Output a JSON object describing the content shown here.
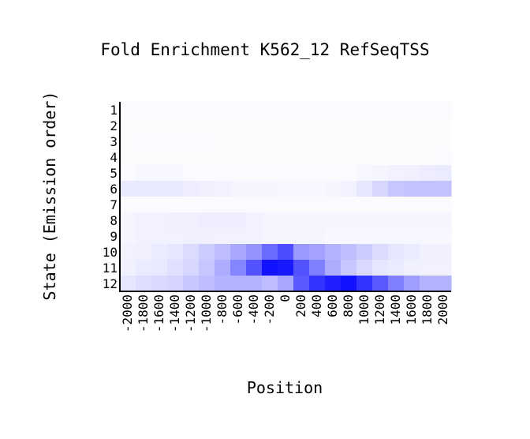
{
  "chart_data": {
    "type": "heatmap",
    "title": "Fold Enrichment K562_12 RefSeqTSS",
    "xlabel": "Position",
    "ylabel": "State (Emission order)",
    "x": [
      "-2000",
      "-1800",
      "-1600",
      "-1400",
      "-1200",
      "-1000",
      "-800",
      "-600",
      "-400",
      "-200",
      "0",
      "200",
      "400",
      "600",
      "800",
      "1000",
      "1200",
      "1400",
      "1600",
      "1800",
      "2000"
    ],
    "y": [
      "1",
      "2",
      "3",
      "4",
      "5",
      "6",
      "7",
      "8",
      "9",
      "10",
      "11",
      "12"
    ],
    "values": [
      [
        0.02,
        0.02,
        0.02,
        0.02,
        0.02,
        0.02,
        0.02,
        0.02,
        0.02,
        0.02,
        0.02,
        0.02,
        0.02,
        0.02,
        0.02,
        0.02,
        0.02,
        0.02,
        0.02,
        0.02,
        0.02
      ],
      [
        0.01,
        0.01,
        0.01,
        0.01,
        0.01,
        0.01,
        0.01,
        0.01,
        0.01,
        0.01,
        0.01,
        0.01,
        0.01,
        0.01,
        0.01,
        0.01,
        0.01,
        0.01,
        0.01,
        0.01,
        0.01
      ],
      [
        0.01,
        0.02,
        0.02,
        0.02,
        0.02,
        0.02,
        0.01,
        0.01,
        0.01,
        0.01,
        0.01,
        0.01,
        0.01,
        0.01,
        0.01,
        0.01,
        0.01,
        0.01,
        0.01,
        0.01,
        0.01
      ],
      [
        0.01,
        0.01,
        0.01,
        0.01,
        0.01,
        0.01,
        0.01,
        0.01,
        0.01,
        0.01,
        0.01,
        0.01,
        0.01,
        0.01,
        0.01,
        0.01,
        0.01,
        0.01,
        0.01,
        0.01,
        0.02
      ],
      [
        0.02,
        0.03,
        0.03,
        0.03,
        0.02,
        0.02,
        0.02,
        0.02,
        0.02,
        0.02,
        0.02,
        0.02,
        0.02,
        0.02,
        0.02,
        0.03,
        0.04,
        0.05,
        0.06,
        0.07,
        0.08
      ],
      [
        0.09,
        0.09,
        0.09,
        0.09,
        0.07,
        0.06,
        0.05,
        0.04,
        0.04,
        0.04,
        0.03,
        0.03,
        0.03,
        0.04,
        0.05,
        0.1,
        0.16,
        0.22,
        0.24,
        0.24,
        0.24
      ],
      [
        0.02,
        0.02,
        0.02,
        0.02,
        0.02,
        0.02,
        0.02,
        0.02,
        0.02,
        0.02,
        0.02,
        0.02,
        0.02,
        0.02,
        0.02,
        0.02,
        0.02,
        0.02,
        0.02,
        0.02,
        0.02
      ],
      [
        0.04,
        0.05,
        0.05,
        0.06,
        0.06,
        0.07,
        0.07,
        0.07,
        0.05,
        0.04,
        0.04,
        0.04,
        0.04,
        0.04,
        0.04,
        0.04,
        0.04,
        0.04,
        0.04,
        0.04,
        0.04
      ],
      [
        0.04,
        0.05,
        0.05,
        0.05,
        0.06,
        0.06,
        0.05,
        0.05,
        0.05,
        0.04,
        0.04,
        0.04,
        0.04,
        0.03,
        0.03,
        0.03,
        0.03,
        0.03,
        0.03,
        0.03,
        0.03
      ],
      [
        0.05,
        0.06,
        0.08,
        0.1,
        0.14,
        0.2,
        0.26,
        0.34,
        0.42,
        0.58,
        0.7,
        0.4,
        0.36,
        0.3,
        0.25,
        0.2,
        0.14,
        0.1,
        0.08,
        0.06,
        0.06
      ],
      [
        0.06,
        0.08,
        0.09,
        0.12,
        0.16,
        0.22,
        0.32,
        0.48,
        0.68,
        0.93,
        0.9,
        0.68,
        0.5,
        0.32,
        0.22,
        0.15,
        0.1,
        0.08,
        0.06,
        0.05,
        0.05
      ],
      [
        0.1,
        0.13,
        0.15,
        0.17,
        0.22,
        0.26,
        0.3,
        0.3,
        0.3,
        0.26,
        0.34,
        0.65,
        0.8,
        0.88,
        0.93,
        0.8,
        0.65,
        0.5,
        0.38,
        0.3,
        0.3
      ]
    ],
    "color_scale": {
      "low": "#ffffff",
      "high": "#0000ff",
      "vmin": 0,
      "vmax": 1
    },
    "grid": false,
    "legend": "none"
  }
}
